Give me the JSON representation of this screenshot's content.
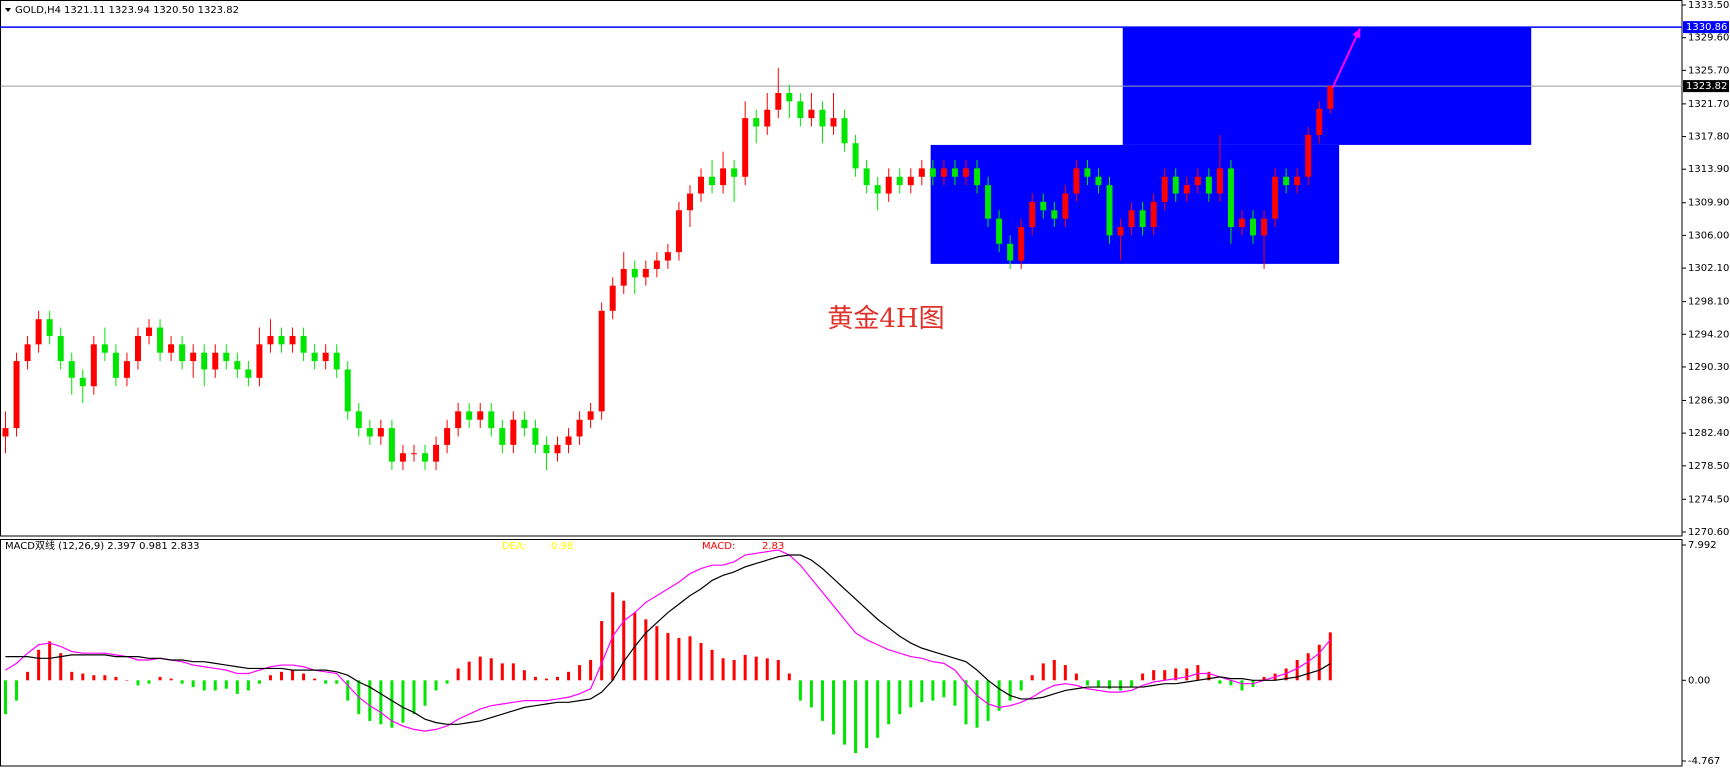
{
  "chart_data": [
    {
      "type": "candlestick",
      "title": "GOLD,H4",
      "subtitle": "1321.11 1323.94 1320.50 1323.82",
      "annotation": "黄金4H图",
      "ylim": [
        1270.6,
        1333.5
      ],
      "yticks": [
        {
          "value": 1333.5,
          "label": "1333.50"
        },
        {
          "value": 1329.6,
          "label": "1329.60"
        },
        {
          "value": 1325.7,
          "label": "1325.70"
        },
        {
          "value": 1321.7,
          "label": "1321.70"
        },
        {
          "value": 1317.8,
          "label": "1317.80"
        },
        {
          "value": 1313.9,
          "label": "1313.90"
        },
        {
          "value": 1309.9,
          "label": "1309.90"
        },
        {
          "value": 1306,
          "label": "1306.00"
        },
        {
          "value": 1302.1,
          "label": "1302.10"
        },
        {
          "value": 1298.1,
          "label": "1298.10"
        },
        {
          "value": 1294.2,
          "label": "1294.20"
        },
        {
          "value": 1290.3,
          "label": "1290.30"
        },
        {
          "value": 1286.3,
          "label": "1286.30"
        },
        {
          "value": 1282.4,
          "label": "1282.40"
        },
        {
          "value": 1278.5,
          "label": "1278.50"
        },
        {
          "value": 1274.5,
          "label": "1274.50"
        },
        {
          "value": 1270.6,
          "label": "1270.60"
        }
      ],
      "up_color": "#ff0000",
      "down_color": "#00e600",
      "candles": [
        [
          1282,
          1285,
          1280,
          1283
        ],
        [
          1283,
          1292,
          1282,
          1291
        ],
        [
          1291,
          1294,
          1290,
          1293
        ],
        [
          1293,
          1297,
          1292,
          1296
        ],
        [
          1296,
          1297,
          1293,
          1294
        ],
        [
          1294,
          1295,
          1290,
          1291
        ],
        [
          1291,
          1292,
          1287,
          1289
        ],
        [
          1289,
          1290,
          1286,
          1288
        ],
        [
          1288,
          1294,
          1287,
          1293
        ],
        [
          1293,
          1295,
          1291,
          1292
        ],
        [
          1292,
          1293,
          1288,
          1289
        ],
        [
          1289,
          1292,
          1288,
          1291
        ],
        [
          1291,
          1295,
          1290,
          1294
        ],
        [
          1294,
          1296,
          1293,
          1295
        ],
        [
          1295,
          1296,
          1291,
          1292
        ],
        [
          1292,
          1294,
          1291,
          1293
        ],
        [
          1293,
          1294,
          1290,
          1291
        ],
        [
          1291,
          1293,
          1289,
          1292
        ],
        [
          1292,
          1293,
          1288,
          1290
        ],
        [
          1290,
          1293,
          1289,
          1292
        ],
        [
          1292,
          1293,
          1290,
          1291
        ],
        [
          1291,
          1292,
          1289,
          1290
        ],
        [
          1290,
          1291,
          1288,
          1289
        ],
        [
          1289,
          1295,
          1288,
          1293
        ],
        [
          1293,
          1296,
          1292,
          1294
        ],
        [
          1294,
          1295,
          1292,
          1293
        ],
        [
          1293,
          1295,
          1292,
          1294
        ],
        [
          1294,
          1295,
          1291,
          1292
        ],
        [
          1292,
          1293,
          1290,
          1291
        ],
        [
          1291,
          1293,
          1290,
          1292
        ],
        [
          1292,
          1293,
          1289,
          1290
        ],
        [
          1290,
          1291,
          1284,
          1285
        ],
        [
          1285,
          1286,
          1282,
          1283
        ],
        [
          1283,
          1284,
          1281,
          1282
        ],
        [
          1282,
          1284,
          1281,
          1283
        ],
        [
          1283,
          1284,
          1278,
          1279
        ],
        [
          1279,
          1281,
          1278,
          1280
        ],
        [
          1280,
          1281,
          1279,
          1280
        ],
        [
          1280,
          1281,
          1278,
          1279
        ],
        [
          1279,
          1282,
          1278,
          1281
        ],
        [
          1281,
          1284,
          1280,
          1283
        ],
        [
          1283,
          1286,
          1282,
          1285
        ],
        [
          1285,
          1286,
          1283,
          1284
        ],
        [
          1284,
          1286,
          1283,
          1285
        ],
        [
          1285,
          1286,
          1282,
          1283
        ],
        [
          1283,
          1284,
          1280,
          1281
        ],
        [
          1281,
          1285,
          1280,
          1284
        ],
        [
          1284,
          1285,
          1282,
          1283
        ],
        [
          1283,
          1284,
          1280,
          1281
        ],
        [
          1281,
          1282,
          1278,
          1280
        ],
        [
          1280,
          1282,
          1279,
          1281
        ],
        [
          1281,
          1283,
          1280,
          1282
        ],
        [
          1282,
          1285,
          1281,
          1284
        ],
        [
          1284,
          1286,
          1283,
          1285
        ],
        [
          1285,
          1298,
          1284,
          1297
        ],
        [
          1297,
          1301,
          1296,
          1300
        ],
        [
          1300,
          1304,
          1299,
          1302
        ],
        [
          1302,
          1303,
          1299,
          1301
        ],
        [
          1301,
          1303,
          1300,
          1302
        ],
        [
          1302,
          1304,
          1301,
          1303
        ],
        [
          1303,
          1305,
          1302,
          1304
        ],
        [
          1304,
          1310,
          1303,
          1309
        ],
        [
          1309,
          1312,
          1307,
          1311
        ],
        [
          1311,
          1314,
          1310,
          1313
        ],
        [
          1313,
          1315,
          1311,
          1312
        ],
        [
          1312,
          1316,
          1311,
          1314
        ],
        [
          1314,
          1315,
          1310,
          1313
        ],
        [
          1313,
          1322,
          1312,
          1320
        ],
        [
          1320,
          1321,
          1317,
          1319
        ],
        [
          1319,
          1323,
          1318,
          1321
        ],
        [
          1321,
          1326,
          1320,
          1323
        ],
        [
          1323,
          1324,
          1320,
          1322
        ],
        [
          1322,
          1323,
          1319,
          1320
        ],
        [
          1320,
          1323,
          1319,
          1321
        ],
        [
          1321,
          1322,
          1317,
          1319
        ],
        [
          1319,
          1323,
          1318,
          1320
        ],
        [
          1320,
          1321,
          1316,
          1317
        ],
        [
          1317,
          1318,
          1313,
          1314
        ],
        [
          1314,
          1315,
          1311,
          1312
        ],
        [
          1312,
          1313,
          1309,
          1311
        ],
        [
          1311,
          1314,
          1310,
          1313
        ],
        [
          1313,
          1314,
          1311,
          1312
        ],
        [
          1312,
          1314,
          1311,
          1313
        ],
        [
          1313,
          1315,
          1312,
          1314
        ],
        [
          1314,
          1315,
          1312,
          1313
        ],
        [
          1313,
          1315,
          1312,
          1314
        ],
        [
          1314,
          1315,
          1312,
          1313
        ],
        [
          1313,
          1315,
          1312,
          1314
        ],
        [
          1314,
          1315,
          1311,
          1312
        ],
        [
          1312,
          1313,
          1307,
          1308
        ],
        [
          1308,
          1309,
          1304,
          1305
        ],
        [
          1305,
          1306,
          1302,
          1303
        ],
        [
          1303,
          1308,
          1302,
          1307
        ],
        [
          1307,
          1311,
          1306,
          1310
        ],
        [
          1310,
          1311,
          1308,
          1309
        ],
        [
          1309,
          1310,
          1307,
          1308
        ],
        [
          1308,
          1312,
          1307,
          1311
        ],
        [
          1311,
          1315,
          1310,
          1314
        ],
        [
          1314,
          1315,
          1312,
          1313
        ],
        [
          1313,
          1314,
          1311,
          1312
        ],
        [
          1312,
          1313,
          1305,
          1306
        ],
        [
          1306,
          1308,
          1303,
          1307
        ],
        [
          1307,
          1310,
          1306,
          1309
        ],
        [
          1309,
          1310,
          1306,
          1307
        ],
        [
          1307,
          1311,
          1306,
          1310
        ],
        [
          1310,
          1314,
          1309,
          1313
        ],
        [
          1313,
          1314,
          1310,
          1311
        ],
        [
          1311,
          1313,
          1310,
          1312
        ],
        [
          1312,
          1314,
          1311,
          1313
        ],
        [
          1313,
          1314,
          1310,
          1311
        ],
        [
          1311,
          1318,
          1310,
          1314
        ],
        [
          1314,
          1315,
          1305,
          1307
        ],
        [
          1307,
          1309,
          1306,
          1308
        ],
        [
          1308,
          1309,
          1305,
          1306
        ],
        [
          1306,
          1309,
          1302,
          1308
        ],
        [
          1308,
          1314,
          1307,
          1313
        ],
        [
          1313,
          1314,
          1311,
          1312
        ],
        [
          1312,
          1314,
          1311,
          1313
        ],
        [
          1313,
          1319,
          1312,
          1318
        ],
        [
          1318,
          1322,
          1317,
          1321.11
        ],
        [
          1321.11,
          1323.94,
          1320.5,
          1323.82
        ]
      ],
      "hlines": [
        {
          "value": 1330.86,
          "color": "#0000ff",
          "box": "#0000ff"
        },
        {
          "value": 1323.82,
          "color": "#9a9aae",
          "box": "#000000"
        }
      ],
      "rectangles": [
        {
          "x": [
            83.8,
            120.8
          ],
          "y": [
            1302.6,
            1316.8
          ],
          "color": "#0000ff"
        },
        {
          "x": [
            101.2,
            138.2
          ],
          "y": [
            1316.8,
            1330.86
          ],
          "color": "#0000ff"
        }
      ],
      "arrow": {
        "x": [
          120.2,
          122.7
        ],
        "y": [
          1323.6,
          1330.7
        ],
        "color": "#ff00ff"
      }
    },
    {
      "type": "macd",
      "title": "MACD双线 (12,26,9) 2.397 0.981 2.833",
      "dea_label": "DEA:",
      "dea_value": 0.98,
      "dea_color": "#ffff00",
      "macd_label": "MACD:",
      "macd_value": 2.83,
      "macd_color": "#ff0000",
      "ylim": [
        -4.767,
        7.992
      ],
      "yticks": [
        7.992,
        {
          "value": 0,
          "label": "0.00"
        },
        -4.767
      ],
      "up_color": "#ff0000",
      "down_color": "#00e600",
      "histogram": [
        -2.0,
        -1.2,
        0.5,
        1.8,
        2.3,
        1.6,
        0.5,
        0.4,
        0.3,
        0.3,
        0.2,
        0.0,
        -0.3,
        -0.2,
        0.2,
        0.1,
        -0.2,
        -0.4,
        -0.6,
        -0.6,
        -0.5,
        -0.8,
        -0.6,
        -0.2,
        0.3,
        0.5,
        0.6,
        0.4,
        0.1,
        -0.2,
        -0.2,
        -1.2,
        -2.0,
        -2.4,
        -2.6,
        -2.8,
        -2.5,
        -2.0,
        -1.5,
        -0.6,
        -0.2,
        0.7,
        1.1,
        1.4,
        1.3,
        1.0,
        1.0,
        0.6,
        0.2,
        0.1,
        0.2,
        0.5,
        0.9,
        1.2,
        3.5,
        5.2,
        4.7,
        4.0,
        3.6,
        3.2,
        2.8,
        2.5,
        2.6,
        2.2,
        1.8,
        1.3,
        1.2,
        1.5,
        1.4,
        1.3,
        1.2,
        0.4,
        -1.2,
        -1.6,
        -2.4,
        -3.2,
        -3.8,
        -4.3,
        -4.0,
        -3.4,
        -2.6,
        -2.0,
        -1.6,
        -1.3,
        -1.2,
        -1.0,
        -1.5,
        -2.6,
        -2.8,
        -2.4,
        -1.8,
        -1.2,
        -0.6,
        0.3,
        1.0,
        1.2,
        0.9,
        0.4,
        -0.3,
        -0.4,
        -0.5,
        -0.6,
        -0.4,
        0.4,
        0.6,
        0.6,
        0.7,
        0.7,
        0.9,
        0.5,
        -0.2,
        -0.3,
        -0.6,
        -0.4,
        0.2,
        0.4,
        0.7,
        1.2,
        1.6,
        2.1,
        2.83
      ],
      "lines": [
        {
          "color": "#ff00ff",
          "values": [
            0.6,
            1.0,
            1.6,
            2.1,
            2.2,
            2.0,
            1.7,
            1.6,
            1.6,
            1.6,
            1.5,
            1.4,
            1.2,
            1.2,
            1.3,
            1.2,
            1.1,
            0.9,
            0.8,
            0.7,
            0.6,
            0.4,
            0.4,
            0.6,
            0.8,
            0.9,
            0.9,
            0.8,
            0.6,
            0.5,
            0.4,
            -0.3,
            -1.0,
            -1.5,
            -1.9,
            -2.4,
            -2.7,
            -2.9,
            -3.0,
            -2.9,
            -2.7,
            -2.3,
            -2.0,
            -1.7,
            -1.5,
            -1.4,
            -1.3,
            -1.2,
            -1.2,
            -1.2,
            -1.1,
            -1.0,
            -0.8,
            -0.5,
            1.0,
            2.6,
            3.5,
            4.0,
            4.6,
            5.0,
            5.4,
            5.8,
            6.3,
            6.6,
            6.8,
            6.8,
            7.0,
            7.4,
            7.5,
            7.6,
            7.7,
            7.4,
            6.8,
            6.0,
            5.2,
            4.4,
            3.6,
            2.8,
            2.4,
            2.1,
            1.8,
            1.6,
            1.4,
            1.3,
            1.1,
            1.0,
            0.6,
            -0.2,
            -0.9,
            -1.4,
            -1.6,
            -1.5,
            -1.3,
            -1.0,
            -0.6,
            -0.3,
            -0.2,
            -0.3,
            -0.5,
            -0.6,
            -0.7,
            -0.7,
            -0.6,
            -0.3,
            -0.1,
            0.0,
            0.1,
            0.2,
            0.4,
            0.4,
            0.2,
            0.0,
            -0.2,
            -0.2,
            0.0,
            0.2,
            0.4,
            0.7,
            1.1,
            1.6,
            2.397
          ]
        },
        {
          "color": "#000000",
          "values": [
            1.4,
            1.4,
            1.4,
            1.3,
            1.3,
            1.4,
            1.5,
            1.5,
            1.5,
            1.5,
            1.4,
            1.4,
            1.4,
            1.3,
            1.3,
            1.2,
            1.2,
            1.1,
            1.1,
            1.0,
            0.9,
            0.8,
            0.7,
            0.7,
            0.7,
            0.7,
            0.6,
            0.6,
            0.6,
            0.6,
            0.5,
            0.3,
            -0.1,
            -0.4,
            -0.8,
            -1.2,
            -1.6,
            -1.9,
            -2.3,
            -2.5,
            -2.6,
            -2.6,
            -2.5,
            -2.4,
            -2.2,
            -2.0,
            -1.8,
            -1.6,
            -1.5,
            -1.4,
            -1.3,
            -1.3,
            -1.2,
            -1.1,
            -0.7,
            0.0,
            1.1,
            2.0,
            2.8,
            3.4,
            4.0,
            4.5,
            5.0,
            5.4,
            5.9,
            6.2,
            6.4,
            6.7,
            6.9,
            7.1,
            7.3,
            7.4,
            7.4,
            7.1,
            6.6,
            6.0,
            5.4,
            4.8,
            4.2,
            3.6,
            3.1,
            2.6,
            2.2,
            1.9,
            1.7,
            1.5,
            1.3,
            1.1,
            0.6,
            0.0,
            -0.5,
            -0.9,
            -1.1,
            -1.1,
            -1.0,
            -0.8,
            -0.6,
            -0.5,
            -0.4,
            -0.4,
            -0.4,
            -0.4,
            -0.4,
            -0.4,
            -0.3,
            -0.2,
            -0.2,
            -0.1,
            0.0,
            0.1,
            0.2,
            0.1,
            0.1,
            0.0,
            0.0,
            0.0,
            0.1,
            0.2,
            0.4,
            0.6,
            0.981
          ]
        }
      ]
    }
  ]
}
